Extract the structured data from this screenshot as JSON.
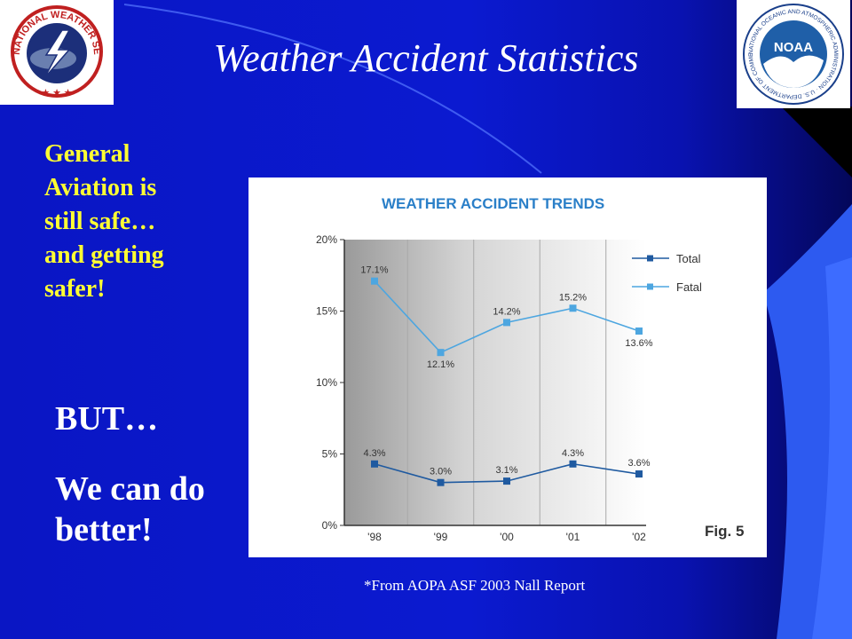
{
  "slide": {
    "title": "Weather Accident Statistics",
    "tagline_lines": [
      "General",
      "Aviation is",
      "still safe…",
      "and getting",
      "safer!"
    ],
    "but": "BUT…",
    "better_lines": [
      "We can do",
      "better!"
    ],
    "source": "*From AOPA ASF 2003 Nall Report"
  },
  "logos": {
    "nws_text": "NATIONAL WEATHER SERVICE",
    "noaa_text": "NOAA",
    "noaa_ring_text": "NATIONAL OCEANIC AND ATMOSPHERIC ADMINISTRATION · U.S. DEPARTMENT OF COMMERCE"
  },
  "colors": {
    "background": "#0b1ad0",
    "tagline": "#ffff33",
    "total_series": "#1f5aa0",
    "fatal_series": "#4da6e0",
    "chart_title": "#2a7fc8"
  },
  "chart_data": {
    "type": "line",
    "title": "WEATHER ACCIDENT TRENDS",
    "figure_label": "Fig. 5",
    "categories": [
      "'98",
      "'99",
      "'00",
      "'01",
      "'02"
    ],
    "ylim": [
      0,
      20
    ],
    "yticks": [
      0,
      5,
      10,
      15,
      20
    ],
    "ytick_labels": [
      "0%",
      "5%",
      "10%",
      "15%",
      "20%"
    ],
    "legend_position": "top-right",
    "series": [
      {
        "name": "Total",
        "values": [
          4.3,
          3.0,
          3.1,
          4.3,
          3.6
        ],
        "labels": [
          "4.3%",
          "3.0%",
          "3.1%",
          "4.3%",
          "3.6%"
        ],
        "color": "#1f5aa0"
      },
      {
        "name": "Fatal",
        "values": [
          17.1,
          12.1,
          14.2,
          15.2,
          13.6
        ],
        "labels": [
          "17.1%",
          "12.1%",
          "14.2%",
          "15.2%",
          "13.6%"
        ],
        "color": "#4da6e0"
      }
    ]
  }
}
